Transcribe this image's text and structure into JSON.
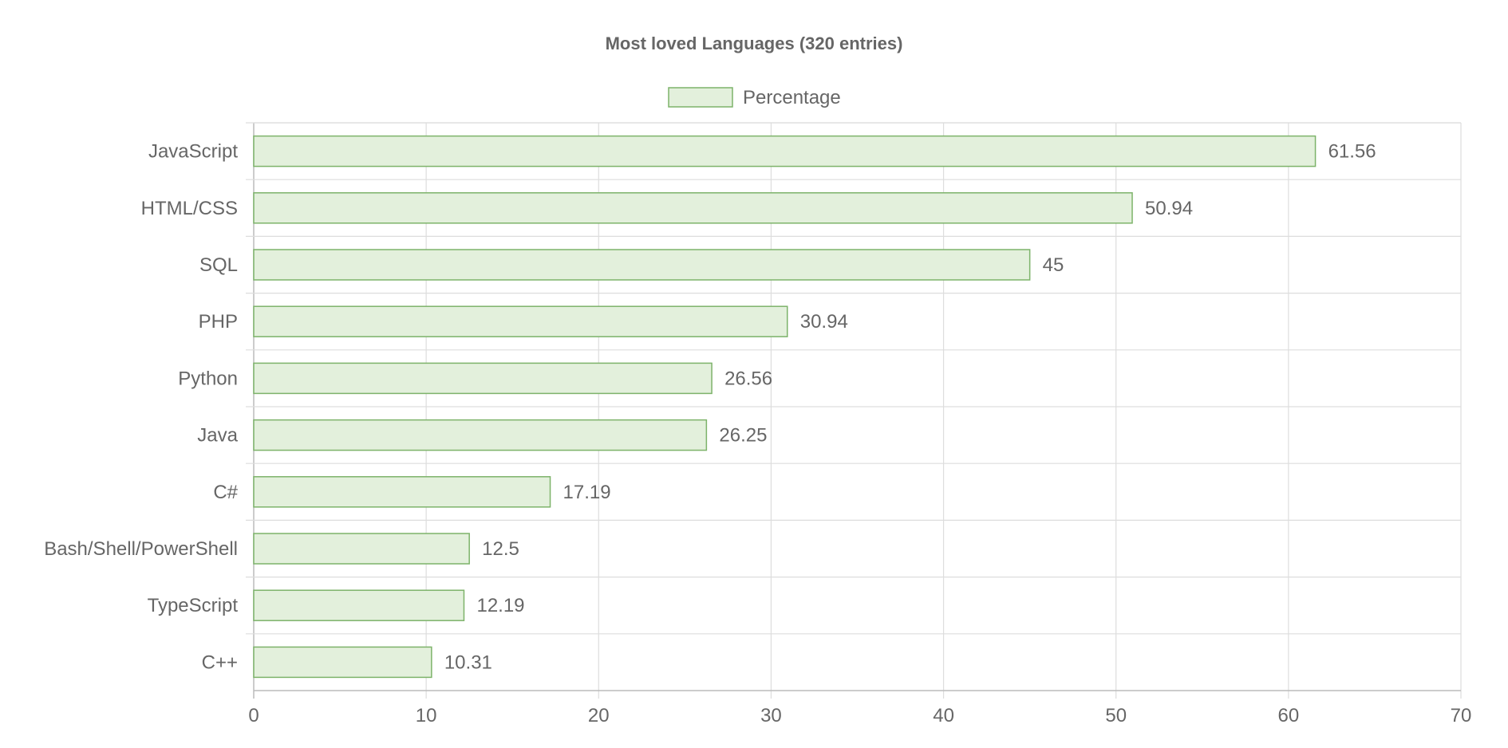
{
  "chart_data": {
    "type": "bar",
    "orientation": "horizontal",
    "title": "Most loved Languages (320 entries)",
    "categories": [
      "JavaScript",
      "HTML/CSS",
      "SQL",
      "PHP",
      "Python",
      "Java",
      "C#",
      "Bash/Shell/PowerShell",
      "TypeScript",
      "C++"
    ],
    "series": [
      {
        "name": "Percentage",
        "values": [
          61.56,
          50.94,
          45,
          30.94,
          26.56,
          26.25,
          17.19,
          12.5,
          12.19,
          10.31
        ]
      }
    ],
    "xlim": [
      0,
      70
    ],
    "x_ticks": [
      0,
      10,
      20,
      30,
      40,
      50,
      60,
      70
    ],
    "grid": true,
    "legend_position": "top",
    "data_labels": true,
    "colors": {
      "bar_fill": "#e3f0dc",
      "bar_stroke": "#7db36a",
      "text": "#666666",
      "grid": "#dddddd"
    }
  }
}
